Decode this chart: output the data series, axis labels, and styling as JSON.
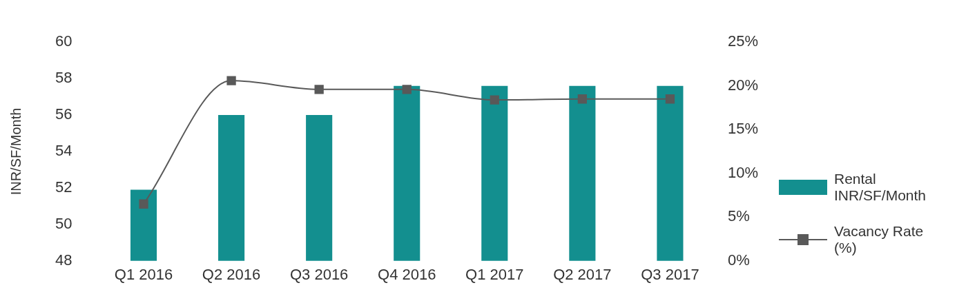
{
  "chart_data": {
    "type": "bar",
    "ylabel": "INR/SF/Month",
    "categories": [
      "Q1 2016",
      "Q2 2016",
      "Q3 2016",
      "Q4 2016",
      "Q1 2017",
      "Q2 2017",
      "Q3 2017"
    ],
    "series": [
      {
        "name": "Rental INR/SF/Month",
        "color": "#138f8f",
        "values": [
          51.9,
          56,
          56,
          57.6,
          57.6,
          57.6,
          57.6
        ]
      },
      {
        "name": "Vacancy Rate (%)",
        "type": "line",
        "axis": "y2",
        "color": "#595959",
        "values": [
          6.5,
          20.6,
          19.6,
          19.6,
          18.4,
          18.5,
          18.5
        ]
      }
    ],
    "ylim": [
      48,
      60
    ],
    "yticks": [
      48,
      50,
      52,
      54,
      56,
      58,
      60
    ],
    "y2lim": [
      0,
      25
    ],
    "y2ticks": [
      {
        "value": 0,
        "label": "0%"
      },
      {
        "value": 5,
        "label": "5%"
      },
      {
        "value": 10,
        "label": "10%"
      },
      {
        "value": 15,
        "label": "15%"
      },
      {
        "value": 20,
        "label": "20%"
      },
      {
        "value": 25,
        "label": "25%"
      }
    ],
    "grid": false,
    "legend": "right",
    "marker": "square",
    "line_style": "solid"
  }
}
